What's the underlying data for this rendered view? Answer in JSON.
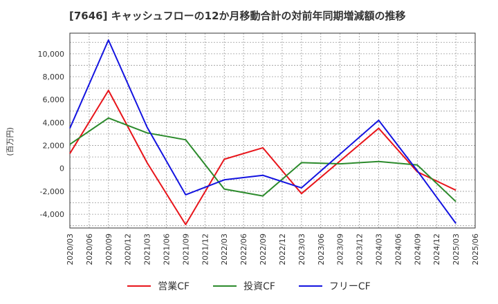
{
  "chart_data": {
    "type": "line",
    "title": "[7646]  キャッシュフローの12か月移動合計の対前年同期増減額の推移",
    "ylabel": "(百万円)",
    "xlabel": "",
    "ylim": [
      -5200,
      11800
    ],
    "yticks": [
      -4000,
      -2000,
      0,
      2000,
      4000,
      6000,
      8000,
      10000
    ],
    "ytick_labels": [
      "-4,000",
      "-2,000",
      "0",
      "2,000",
      "4,000",
      "6,000",
      "8,000",
      "10,000"
    ],
    "categories": [
      "2020/03",
      "2020/06",
      "2020/09",
      "2020/12",
      "2021/03",
      "2021/06",
      "2021/09",
      "2021/12",
      "2022/03",
      "2022/06",
      "2022/09",
      "2022/12",
      "2023/03",
      "2023/06",
      "2023/09",
      "2023/12",
      "2024/03",
      "2024/06",
      "2024/09",
      "2024/12",
      "2025/03",
      "2025/06"
    ],
    "series": [
      {
        "name": "営業CF",
        "color": "#e8141a",
        "points": [
          [
            0,
            1300
          ],
          [
            2,
            6800
          ],
          [
            4,
            500
          ],
          [
            6,
            -4900
          ],
          [
            8,
            800
          ],
          [
            10,
            1800
          ],
          [
            12,
            -2200
          ],
          [
            16,
            3500
          ],
          [
            18,
            -300
          ],
          [
            20,
            -1900
          ]
        ]
      },
      {
        "name": "投資CF",
        "color": "#2b8a2b",
        "points": [
          [
            0,
            2100
          ],
          [
            2,
            4400
          ],
          [
            4,
            3100
          ],
          [
            6,
            2500
          ],
          [
            8,
            -1800
          ],
          [
            10,
            -2400
          ],
          [
            12,
            500
          ],
          [
            14,
            400
          ],
          [
            16,
            600
          ],
          [
            18,
            300
          ],
          [
            20,
            -2900
          ]
        ]
      },
      {
        "name": "フリーCF",
        "color": "#1313e0",
        "points": [
          [
            0,
            3500
          ],
          [
            2,
            11200
          ],
          [
            4,
            3600
          ],
          [
            6,
            -2300
          ],
          [
            8,
            -1000
          ],
          [
            10,
            -600
          ],
          [
            12,
            -1700
          ],
          [
            16,
            4200
          ],
          [
            18,
            -200
          ],
          [
            20,
            -4800
          ]
        ]
      }
    ]
  }
}
